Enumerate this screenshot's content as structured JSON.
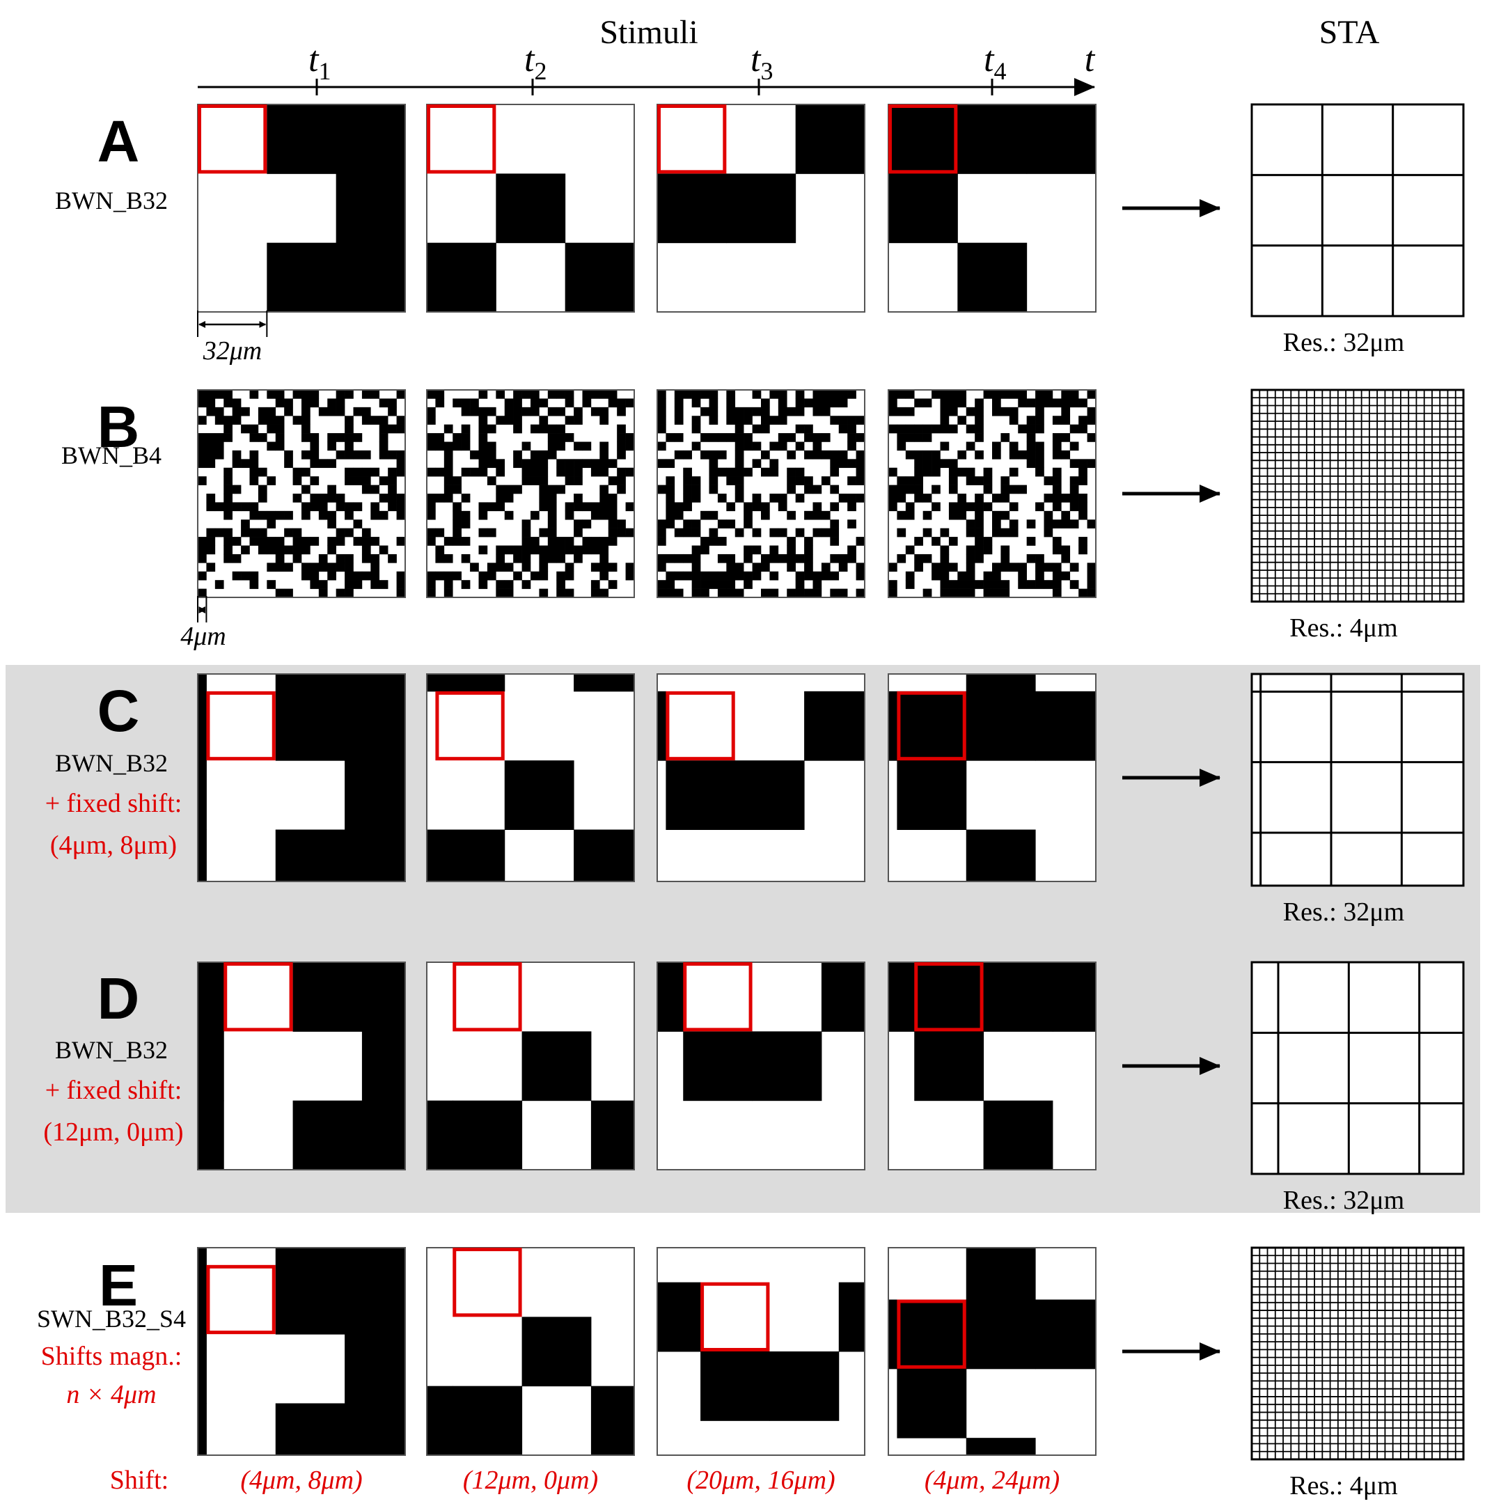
{
  "header": {
    "stimuli": "Stimuli",
    "sta": "STA",
    "time_axis": "t",
    "time_ticks": [
      {
        "main": "t",
        "sub": "1"
      },
      {
        "main": "t",
        "sub": "2"
      },
      {
        "main": "t",
        "sub": "3"
      },
      {
        "main": "t",
        "sub": "4"
      }
    ]
  },
  "colors": {
    "highlight": "#e00000",
    "ink": "#000000",
    "panel_bg": "#dcdcdc",
    "frame_edge": "#555555"
  },
  "rows": [
    {
      "letter": "A",
      "name": "BWN_B32",
      "resolution": "Res.: 32μm",
      "scale_label": "32μm",
      "grid": 3,
      "frames": [
        [
          "WBB",
          "WWB",
          "WBB"
        ],
        [
          "WWW",
          "WBW",
          "BWB"
        ],
        [
          "WWB",
          "BBW",
          "WWW"
        ],
        [
          "BBB",
          "BWW",
          "WBW"
        ]
      ]
    },
    {
      "letter": "B",
      "name": "BWN_B4",
      "resolution": "Res.: 4μm",
      "scale_label": "4μm",
      "grid": 24,
      "random_seeds": [
        11,
        23,
        37,
        53
      ]
    },
    {
      "letter": "C",
      "name": "BWN_B32",
      "extra_lines": [
        "+ fixed shift:",
        "(4μm, 8μm)"
      ],
      "resolution": "Res.: 32μm",
      "grid": 3,
      "shift": [
        4,
        8
      ]
    },
    {
      "letter": "D",
      "name": "BWN_B32",
      "extra_lines": [
        "+ fixed shift:",
        "(12μm, 0μm)"
      ],
      "resolution": "Res.: 32μm",
      "grid": 3,
      "shift": [
        12,
        0
      ]
    },
    {
      "letter": "E",
      "name": "SWN_B32_S4",
      "extra_lines": [
        "Shifts magn.:",
        "n × 4μm"
      ],
      "resolution": "Res.:  4μm",
      "grid": 3,
      "shifts": [
        [
          4,
          8
        ],
        [
          12,
          0
        ],
        [
          20,
          16
        ],
        [
          4,
          24
        ]
      ],
      "shift_row_label": "Shift:",
      "shift_labels": [
        "(4μm, 8μm)",
        "(12μm, 0μm)",
        "(20μm, 16μm)",
        "(4μm, 24μm)"
      ]
    }
  ]
}
